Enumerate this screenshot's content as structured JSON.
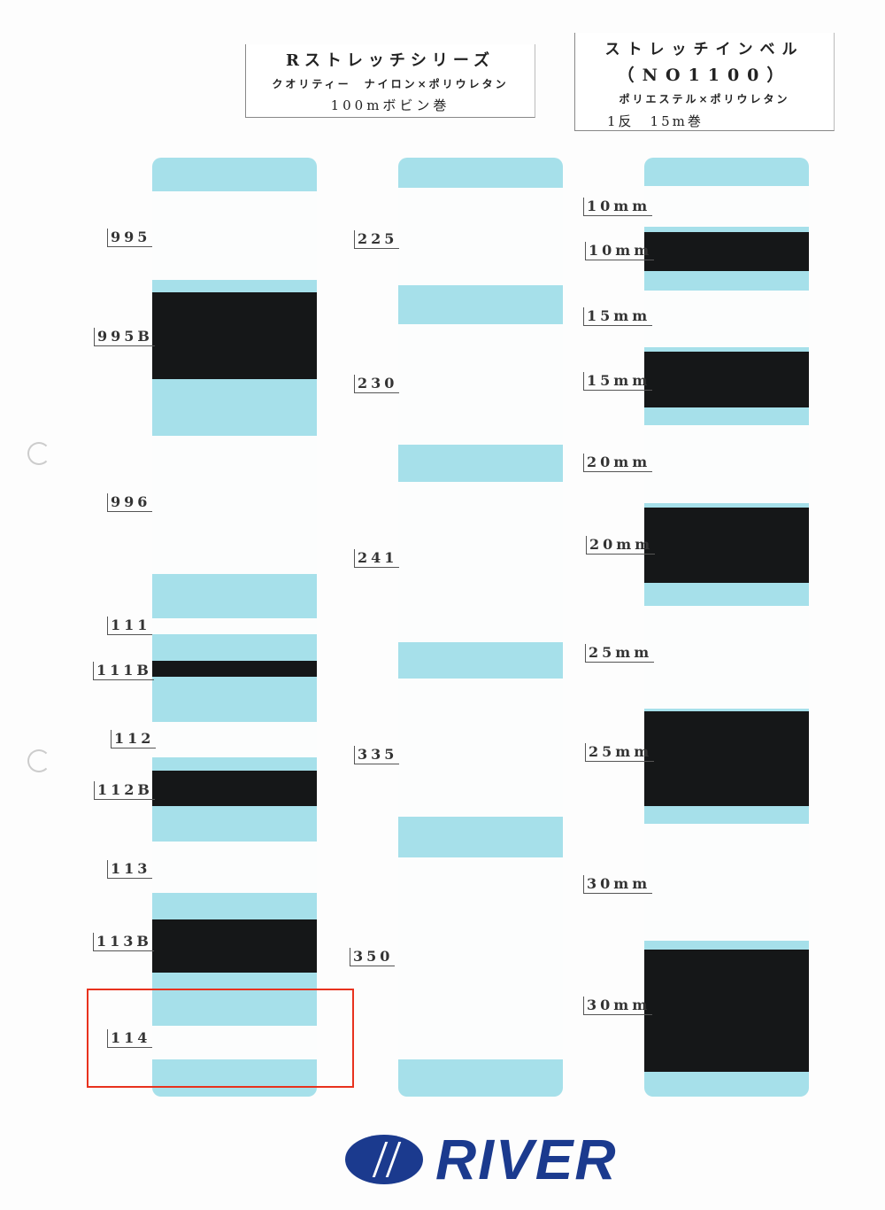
{
  "header_left": {
    "title": "Rストレッチシリーズ",
    "material": "クオリティー　ナイロン×ポリウレタン",
    "packaging": "100mボビン巻"
  },
  "header_right": {
    "title": "ストレッチインベル",
    "code": "（NO1100）",
    "material": "ポリエステル×ポリウレタン",
    "packaging": "1反　15m巻"
  },
  "column1": {
    "labels": [
      "995",
      "995B",
      "996",
      "111",
      "111B",
      "112",
      "112B",
      "113",
      "113B",
      "114"
    ]
  },
  "column2": {
    "labels": [
      "225",
      "230",
      "241",
      "335",
      "350"
    ]
  },
  "column3": {
    "labels": [
      "10mm",
      "10mm",
      "15mm",
      "15mm",
      "20mm",
      "20mm",
      "25mm",
      "25mm",
      "30mm",
      "30mm"
    ]
  },
  "selected": "114",
  "colors": {
    "card_blue": "#a6e0ea",
    "selection": "#e8321e",
    "brand": "#1b3a8e"
  },
  "logo": {
    "text": "RIVER"
  }
}
